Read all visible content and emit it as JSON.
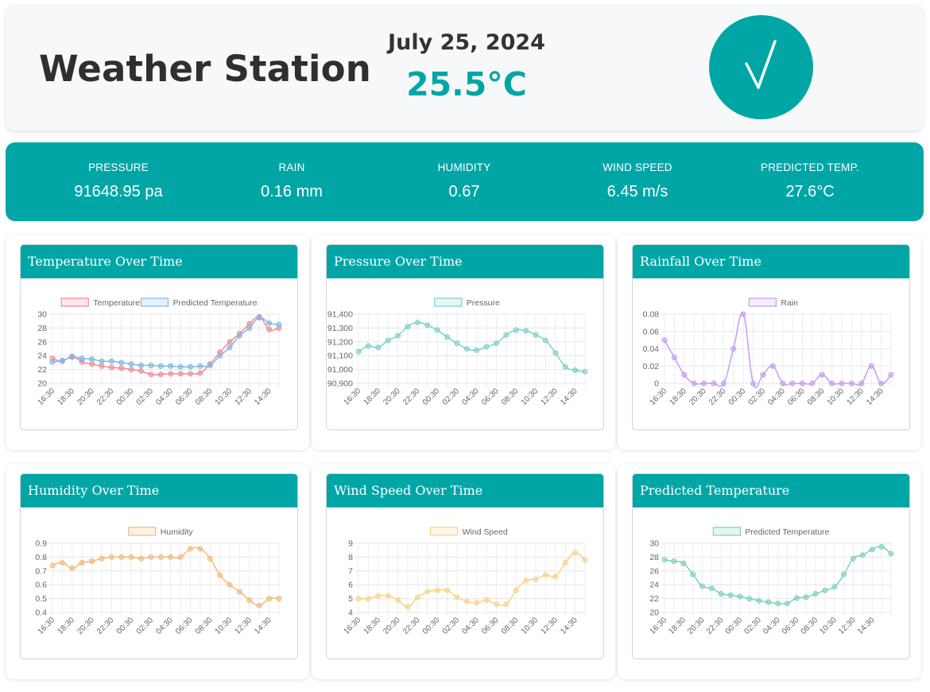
{
  "header": {
    "title": "Weather Station",
    "date": "July 25, 2024",
    "temperature": "25.5°C",
    "status_icon": "checkmark-icon"
  },
  "stats": [
    {
      "label": "PRESSURE",
      "value": "91648.95 pa"
    },
    {
      "label": "RAIN",
      "value": "0.16 mm"
    },
    {
      "label": "HUMIDITY",
      "value": "0.67"
    },
    {
      "label": "WIND SPEED",
      "value": "6.45 m/s"
    },
    {
      "label": "PREDICTED TEMP.",
      "value": "27.6°C"
    }
  ],
  "colors": {
    "accent": "#00a6a6",
    "header_bg": "#f7f8f9"
  },
  "x_labels": [
    "16:30",
    "18:30",
    "20:30",
    "22:30",
    "00:30",
    "02:30",
    "04:30",
    "06:30",
    "08:30",
    "10:30",
    "12:30",
    "14:30"
  ],
  "charts": [
    {
      "title": "Temperature Over Time",
      "chart_data": {
        "type": "line",
        "ylim": [
          20,
          30
        ],
        "yticks": [
          20,
          22,
          24,
          26,
          28,
          30
        ],
        "series": [
          {
            "name": "Temperature",
            "color": "#f28b96",
            "values": [
              23.6,
              23.2,
              23.9,
              23.1,
              22.8,
              22.5,
              22.3,
              22.2,
              22.0,
              21.8,
              21.3,
              21.3,
              21.4,
              21.4,
              21.4,
              21.5,
              22.8,
              24.5,
              26.0,
              27.2,
              28.6,
              29.6,
              27.8,
              28.0
            ]
          },
          {
            "name": "Predicted Temperature",
            "color": "#7fb8e6",
            "values": [
              23.1,
              23.3,
              23.8,
              23.6,
              23.5,
              23.2,
              23.2,
              23.0,
              22.8,
              22.6,
              22.6,
              22.5,
              22.5,
              22.4,
              22.4,
              22.5,
              22.6,
              24.0,
              25.2,
              26.9,
              28.0,
              29.5,
              28.7,
              28.5
            ]
          }
        ]
      }
    },
    {
      "title": "Pressure Over Time",
      "chart_data": {
        "type": "line",
        "ylim": [
          90900,
          91400
        ],
        "yticks": [
          90900,
          91000,
          91100,
          91200,
          91300,
          91400
        ],
        "ytick_labels": [
          "90,900",
          "91,000",
          "91,100",
          "91,200",
          "91,300",
          "91,400"
        ],
        "series": [
          {
            "name": "Pressure",
            "color": "#7fd1c9",
            "values": [
              91130,
              91170,
              91160,
              91210,
              91245,
              91310,
              91340,
              91320,
              91285,
              91235,
              91190,
              91150,
              91140,
              91165,
              91190,
              91250,
              91285,
              91280,
              91250,
              91210,
              91120,
              91020,
              90995,
              90985
            ]
          }
        ]
      }
    },
    {
      "title": "Rainfall Over Time",
      "chart_data": {
        "type": "line",
        "ylim": [
          0,
          0.08
        ],
        "yticks": [
          0,
          0.02,
          0.04,
          0.06,
          0.08
        ],
        "ytick_labels": [
          "0",
          "0.02",
          "0.04",
          "0.06",
          "0.08"
        ],
        "series": [
          {
            "name": "Rain",
            "color": "#c39ef0",
            "values": [
              0.05,
              0.03,
              0.01,
              0,
              0,
              0,
              0,
              0.04,
              0.08,
              0,
              0.01,
              0.02,
              0,
              0,
              0,
              0,
              0.01,
              0,
              0,
              0,
              0,
              0.02,
              0,
              0.01
            ]
          }
        ]
      }
    },
    {
      "title": "Humidity Over Time",
      "chart_data": {
        "type": "line",
        "ylim": [
          0.4,
          0.9
        ],
        "yticks": [
          0.4,
          0.5,
          0.6,
          0.7,
          0.8,
          0.9
        ],
        "series": [
          {
            "name": "Humidity",
            "color": "#f5b97a",
            "values": [
              0.74,
              0.76,
              0.72,
              0.76,
              0.77,
              0.79,
              0.8,
              0.8,
              0.8,
              0.79,
              0.8,
              0.8,
              0.8,
              0.8,
              0.86,
              0.86,
              0.79,
              0.67,
              0.6,
              0.55,
              0.49,
              0.45,
              0.5,
              0.5
            ]
          }
        ]
      }
    },
    {
      "title": "Wind Speed Over Time",
      "chart_data": {
        "type": "line",
        "ylim": [
          4,
          9
        ],
        "yticks": [
          4,
          5,
          6,
          7,
          8,
          9
        ],
        "series": [
          {
            "name": "Wind Speed",
            "color": "#f7d48a",
            "values": [
              5.0,
              5.0,
              5.2,
              5.2,
              4.9,
              4.4,
              5.1,
              5.5,
              5.6,
              5.6,
              5.1,
              4.8,
              4.7,
              4.9,
              4.6,
              4.6,
              5.6,
              6.3,
              6.4,
              6.7,
              6.6,
              7.6,
              8.3,
              7.8
            ]
          }
        ]
      }
    },
    {
      "title": "Predicted Temperature",
      "chart_data": {
        "type": "line",
        "ylim": [
          20,
          30
        ],
        "yticks": [
          20,
          22,
          24,
          26,
          28,
          30
        ],
        "series": [
          {
            "name": "Predicted Temperature",
            "color": "#7fcfc4",
            "values": [
              27.6,
              27.4,
              27.1,
              25.5,
              23.8,
              23.5,
              22.7,
              22.5,
              22.3,
              22.0,
              21.7,
              21.5,
              21.3,
              21.3,
              22.1,
              22.2,
              22.7,
              23.2,
              23.7,
              25.5,
              27.8,
              28.3,
              29.1,
              29.5,
              28.5
            ]
          }
        ]
      }
    }
  ]
}
